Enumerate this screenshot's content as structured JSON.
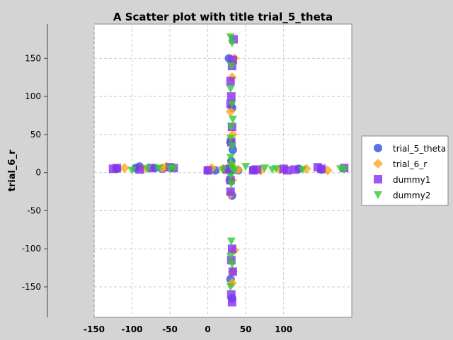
{
  "chart_data": {
    "type": "scatter",
    "title": "A Scatter plot with title trial_5_theta",
    "xlabel": "",
    "ylabel": "trial_6_r",
    "xlim": [
      -150,
      190
    ],
    "ylim": [
      -190,
      195
    ],
    "x_ticks": [
      -150,
      -100,
      -50,
      0,
      50,
      100
    ],
    "y_ticks": [
      -150,
      -100,
      -50,
      0,
      50,
      100,
      150
    ],
    "grid": true,
    "legend_position": "right",
    "series": [
      {
        "name": "trial_5_theta",
        "color": "#3355dd",
        "marker": "circle",
        "points": [
          [
            -120,
            5
          ],
          [
            -95,
            6
          ],
          [
            -90,
            8
          ],
          [
            -70,
            6
          ],
          [
            -60,
            5
          ],
          [
            0,
            3
          ],
          [
            10,
            3
          ],
          [
            30,
            2
          ],
          [
            40,
            3
          ],
          [
            60,
            4
          ],
          [
            120,
            5
          ],
          [
            150,
            4
          ],
          [
            28,
            150
          ],
          [
            32,
            85
          ],
          [
            30,
            40
          ],
          [
            33,
            30
          ],
          [
            31,
            15
          ],
          [
            29,
            -10
          ],
          [
            32,
            -30
          ],
          [
            30,
            -140
          ],
          [
            32,
            -165
          ]
        ]
      },
      {
        "name": "trial_6_r",
        "color": "#ffaa22",
        "marker": "diamond",
        "points": [
          [
            -110,
            6
          ],
          [
            -85,
            5
          ],
          [
            -60,
            6
          ],
          [
            -55,
            8
          ],
          [
            5,
            6
          ],
          [
            20,
            5
          ],
          [
            40,
            4
          ],
          [
            70,
            3
          ],
          [
            95,
            4
          ],
          [
            130,
            5
          ],
          [
            158,
            3
          ],
          [
            35,
            150
          ],
          [
            32,
            125
          ],
          [
            30,
            80
          ],
          [
            33,
            50
          ],
          [
            31,
            10
          ],
          [
            32,
            -10
          ],
          [
            30,
            -28
          ],
          [
            35,
            -102
          ],
          [
            33,
            -130
          ],
          [
            32,
            -145
          ]
        ]
      },
      {
        "name": "dummy1",
        "color": "#8833ee",
        "marker": "square",
        "points": [
          [
            -125,
            5
          ],
          [
            -120,
            6
          ],
          [
            -90,
            4
          ],
          [
            -75,
            6
          ],
          [
            -50,
            7
          ],
          [
            -45,
            6
          ],
          [
            0,
            3
          ],
          [
            25,
            4
          ],
          [
            60,
            3
          ],
          [
            65,
            4
          ],
          [
            100,
            5
          ],
          [
            105,
            3
          ],
          [
            115,
            4
          ],
          [
            145,
            7
          ],
          [
            150,
            5
          ],
          [
            180,
            6
          ],
          [
            34,
            175
          ],
          [
            33,
            148
          ],
          [
            32,
            140
          ],
          [
            30,
            120
          ],
          [
            31,
            100
          ],
          [
            30,
            90
          ],
          [
            32,
            60
          ],
          [
            31,
            40
          ],
          [
            29,
            5
          ],
          [
            30,
            -10
          ],
          [
            30,
            -25
          ],
          [
            32,
            -100
          ],
          [
            31,
            -115
          ],
          [
            33,
            -130
          ],
          [
            31,
            -160
          ],
          [
            32,
            -170
          ]
        ]
      },
      {
        "name": "dummy2",
        "color": "#33cc33",
        "marker": "triangle-down",
        "points": [
          [
            -100,
            3
          ],
          [
            -80,
            5
          ],
          [
            -65,
            6
          ],
          [
            -50,
            5
          ],
          [
            -45,
            6
          ],
          [
            20,
            4
          ],
          [
            35,
            3
          ],
          [
            50,
            8
          ],
          [
            75,
            6
          ],
          [
            85,
            4
          ],
          [
            90,
            5
          ],
          [
            125,
            4
          ],
          [
            175,
            5
          ],
          [
            180,
            4
          ],
          [
            30,
            178
          ],
          [
            32,
            170
          ],
          [
            31,
            140
          ],
          [
            30,
            110
          ],
          [
            32,
            90
          ],
          [
            33,
            70
          ],
          [
            31,
            60
          ],
          [
            30,
            45
          ],
          [
            32,
            35
          ],
          [
            30,
            20
          ],
          [
            31,
            10
          ],
          [
            32,
            5
          ],
          [
            30,
            -5
          ],
          [
            31,
            -15
          ],
          [
            31,
            -90
          ],
          [
            30,
            -110
          ],
          [
            32,
            -120
          ],
          [
            30,
            -150
          ]
        ]
      }
    ]
  }
}
